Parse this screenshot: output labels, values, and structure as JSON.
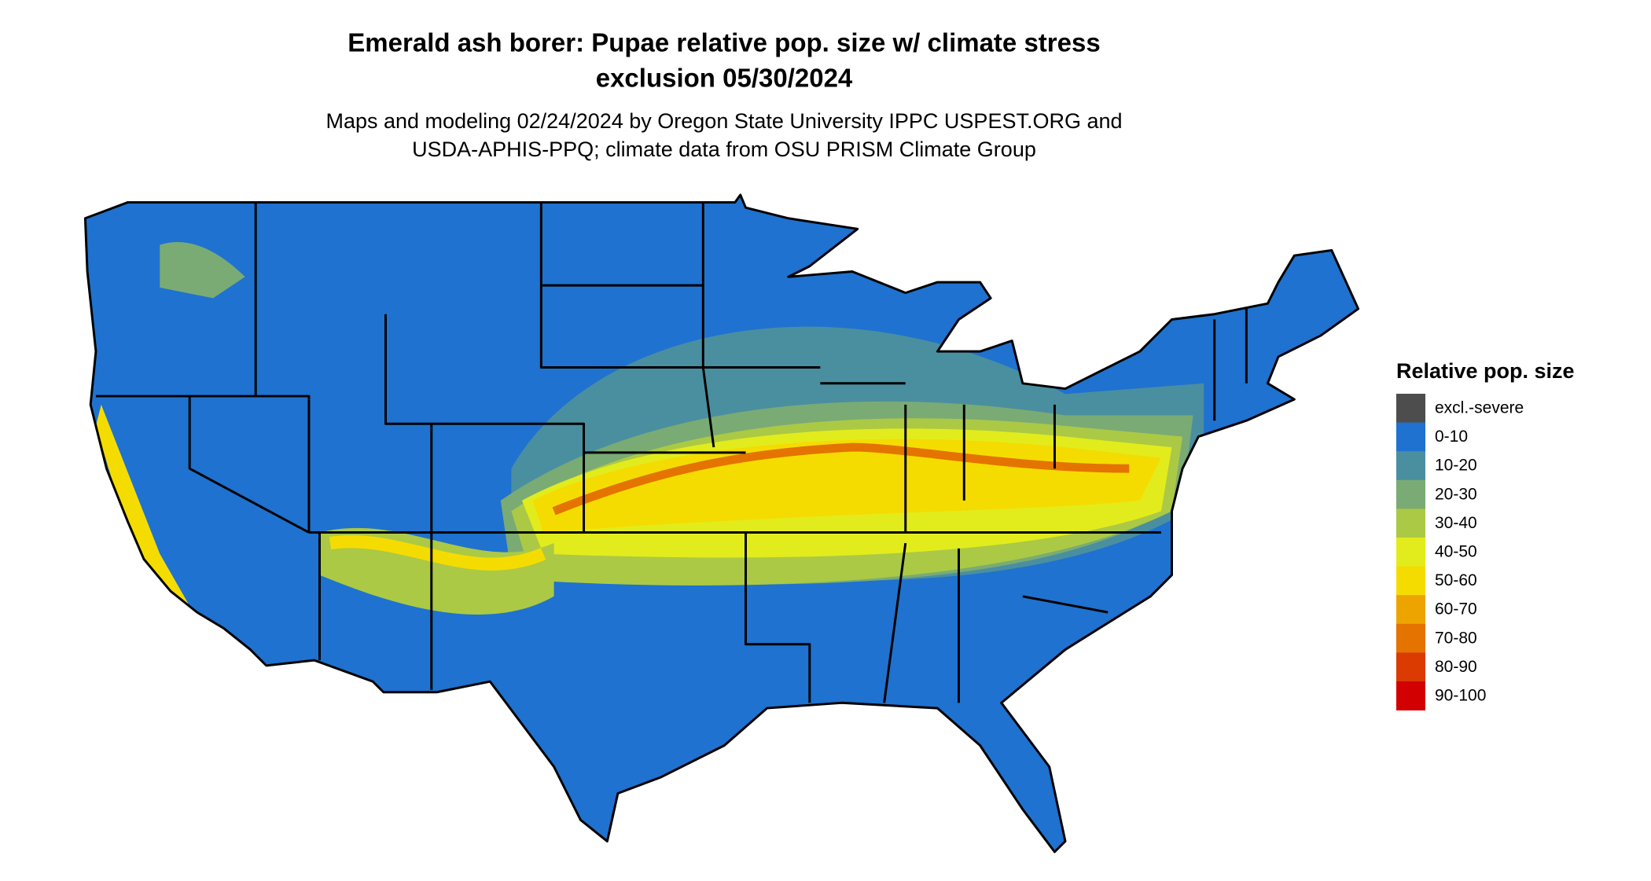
{
  "title": [
    "Emerald ash borer: Pupae relative pop. size w/ climate stress",
    "exclusion 05/30/2024"
  ],
  "subtitle": [
    "Maps and modeling 02/24/2024 by Oregon State University IPPC USPEST.ORG and",
    "USDA-APHIS-PPQ; climate data from OSU PRISM Climate Group"
  ],
  "legend": {
    "title": "Relative pop. size",
    "items": [
      {
        "label": "excl.-severe",
        "color": "#4d4d4d"
      },
      {
        "label": "0-10",
        "color": "#1f72cf"
      },
      {
        "label": "10-20",
        "color": "#4a8fa0"
      },
      {
        "label": "20-30",
        "color": "#7aab74"
      },
      {
        "label": "30-40",
        "color": "#abc945"
      },
      {
        "label": "40-50",
        "color": "#e2ec1c"
      },
      {
        "label": "50-60",
        "color": "#f5dc00"
      },
      {
        "label": "60-70",
        "color": "#eea400"
      },
      {
        "label": "70-80",
        "color": "#e47300"
      },
      {
        "label": "80-90",
        "color": "#db3a00"
      },
      {
        "label": "90-100",
        "color": "#d20000"
      }
    ]
  }
}
